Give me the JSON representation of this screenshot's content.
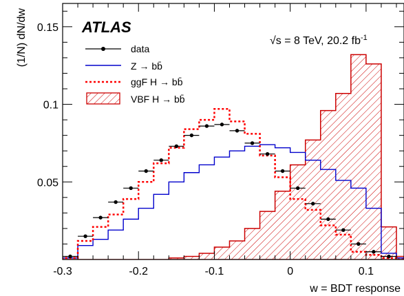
{
  "chart_data": {
    "type": "histogram",
    "xlabel": "w = BDT response",
    "ylabel": "(1/N) dN/dw",
    "xlim": [
      -0.3,
      0.15
    ],
    "ylim": [
      0,
      0.165
    ],
    "x_ticks": [
      "-0.3",
      "-0.2",
      "-0.1",
      "0",
      "0.1"
    ],
    "y_ticks": [
      "0.05",
      "0.1",
      "0.15"
    ],
    "experiment": "ATLAS",
    "energy_prefix": "√s = 8 TeV, 20.2 fb",
    "energy_sup": "-1",
    "grid": false,
    "legend_position": "top-left",
    "bin_edges": [
      -0.3,
      -0.28,
      -0.26,
      -0.24,
      -0.22,
      -0.2,
      -0.18,
      -0.16,
      -0.14,
      -0.12,
      -0.1,
      -0.08,
      -0.06,
      -0.04,
      -0.02,
      0.0,
      0.02,
      0.04,
      0.06,
      0.08,
      0.1,
      0.12,
      0.14,
      0.15
    ],
    "series": [
      {
        "name": "data",
        "style": "points",
        "color": "#000000",
        "x": [
          -0.29,
          -0.27,
          -0.25,
          -0.23,
          -0.21,
          -0.19,
          -0.17,
          -0.15,
          -0.13,
          -0.11,
          -0.09,
          -0.07,
          -0.05,
          -0.03,
          -0.01,
          0.01,
          0.03,
          0.05,
          0.07,
          0.09,
          0.11,
          0.13
        ],
        "values": [
          0.002,
          0.015,
          0.027,
          0.037,
          0.046,
          0.057,
          0.064,
          0.073,
          0.08,
          0.086,
          0.087,
          0.083,
          0.075,
          0.068,
          0.057,
          0.046,
          0.036,
          0.026,
          0.019,
          0.01,
          0.005,
          0.002
        ]
      },
      {
        "name": "Z → bb̄",
        "style": "step",
        "color": "#0000cc",
        "values": [
          0.001,
          0.009,
          0.013,
          0.019,
          0.026,
          0.033,
          0.042,
          0.05,
          0.056,
          0.061,
          0.066,
          0.07,
          0.073,
          0.074,
          0.072,
          0.069,
          0.064,
          0.058,
          0.051,
          0.046,
          0.033,
          0.004,
          0.001
        ]
      },
      {
        "name": "ggF H → bb̄",
        "style": "dashed-step",
        "color": "#ff0000",
        "values": [
          0.001,
          0.012,
          0.021,
          0.029,
          0.039,
          0.05,
          0.062,
          0.072,
          0.084,
          0.09,
          0.097,
          0.089,
          0.081,
          0.067,
          0.053,
          0.039,
          0.032,
          0.022,
          0.016,
          0.005,
          0.003,
          0.001,
          0.0
        ]
      },
      {
        "name": "VBF H → bb̄",
        "style": "hatched-fill",
        "color": "#cc0000",
        "values": [
          0.0,
          0.0,
          0.0,
          0.0,
          0.0,
          0.0,
          0.0,
          0.001,
          0.002,
          0.004,
          0.008,
          0.012,
          0.02,
          0.031,
          0.044,
          0.061,
          0.077,
          0.096,
          0.107,
          0.132,
          0.126,
          0.021,
          0.002
        ]
      }
    ]
  }
}
